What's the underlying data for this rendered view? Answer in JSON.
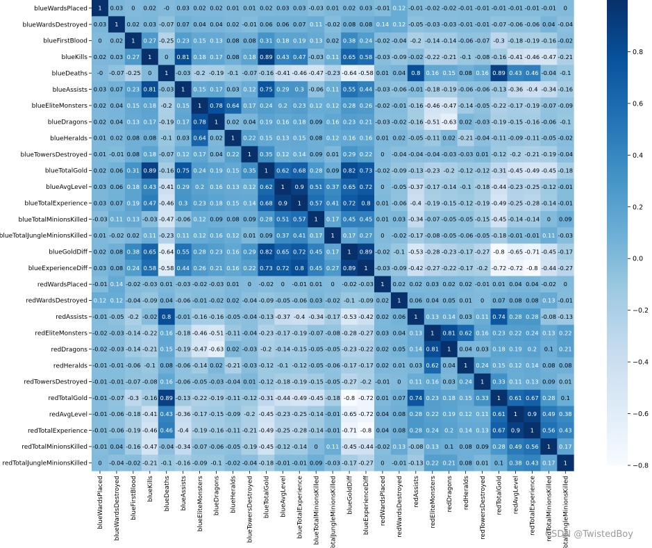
{
  "chart_data": {
    "type": "heatmap",
    "title": "",
    "xlabel": "",
    "ylabel": "",
    "labels": [
      "blueWardsPlaced",
      "blueWardsDestroyed",
      "blueFirstBlood",
      "blueKills",
      "blueDeaths",
      "blueAssists",
      "blueEliteMonsters",
      "blueDragons",
      "blueHeralds",
      "blueTowersDestroyed",
      "blueTotalGold",
      "blueAvgLevel",
      "blueTotalExperience",
      "blueTotalMinionsKilled",
      "blueTotalJungleMinionsKilled",
      "blueGoldDiff",
      "blueExperienceDiff",
      "redWardsPlaced",
      "redWardsDestroyed",
      "redAssists",
      "redEliteMonsters",
      "redDragons",
      "redHeralds",
      "redTowersDestroyed",
      "redTotalGold",
      "redAvgLevel",
      "redTotalExperience",
      "redTotalMinionsKilled",
      "redTotalJungleMinionsKilled"
    ],
    "x_tick_labels": [
      "blueWardsPlaced",
      "blueWardsDestroyed",
      "blueFirstBlood",
      "blueKills",
      "blueDeaths",
      "blueAssists",
      "blueEliteMonsters",
      "blueDragons",
      "blueHeralds",
      "blueTowersDestroyed",
      "blueTotalGold",
      "blueAvgLevel",
      "blueTotalExperience",
      "blueTotalMinionsKilled",
      "eTotalJungleMinionsKilled",
      "blueGoldDiff",
      "blueExperienceDiff",
      "redWardsPlaced",
      "redWardsDestroyed",
      "redAssists",
      "redEliteMonsters",
      "redDragons",
      "redHeralds",
      "redTowersDestroyed",
      "redTotalGold",
      "redAvgLevel",
      "redTotalExperience",
      "redTotalMinionsKilled",
      "dTotalJungleMinionsKilled"
    ],
    "values": [
      [
        "1",
        "0.03",
        "0",
        "0.02",
        "-0",
        "0.03",
        "0.02",
        "0.02",
        "0.01",
        "0.01",
        "0.02",
        "0.03",
        "0.03",
        "-0.03",
        "0.01",
        "0.02",
        "0.03",
        "-0.01",
        "0.12",
        "-0.01",
        "-0.02",
        "-0.02",
        "-0.01",
        "-0.01",
        "-0.01",
        "-0.01",
        "-0.01",
        "-0.01",
        "0"
      ],
      [
        "0.03",
        "1",
        "0.02",
        "0.03",
        "-0.07",
        "0.07",
        "0.04",
        "0.04",
        "0.02",
        "-0.01",
        "0.06",
        "0.06",
        "0.07",
        "0.11",
        "-0.02",
        "0.08",
        "0.08",
        "0.14",
        "0.12",
        "-0.05",
        "-0.03",
        "-0.03",
        "-0.01",
        "-0.01",
        "-0.07",
        "-0.06",
        "-0.06",
        "0.04",
        "-0.04"
      ],
      [
        "0",
        "0.02",
        "1",
        "0.27",
        "-0.25",
        "0.23",
        "0.15",
        "0.13",
        "0.08",
        "0.08",
        "0.31",
        "0.18",
        "0.19",
        "0.13",
        "0.02",
        "0.38",
        "0.24",
        "-0.02",
        "-0.04",
        "-0.2",
        "-0.14",
        "-0.14",
        "-0.06",
        "-0.07",
        "-0.3",
        "-0.18",
        "-0.19",
        "-0.16",
        "-0.02"
      ],
      [
        "0.02",
        "0.03",
        "0.27",
        "1",
        "0",
        "0.81",
        "0.18",
        "0.17",
        "0.08",
        "0.18",
        "0.89",
        "0.43",
        "0.47",
        "-0.03",
        "0.11",
        "0.65",
        "0.58",
        "-0.03",
        "-0.09",
        "-0.02",
        "-0.22",
        "-0.21",
        "-0.1",
        "-0.08",
        "-0.16",
        "-0.41",
        "-0.46",
        "-0.47",
        "-0.21"
      ],
      [
        "-0",
        "-0.07",
        "-0.25",
        "0",
        "1",
        "-0.03",
        "-0.2",
        "-0.19",
        "-0.1",
        "-0.07",
        "-0.16",
        "-0.41",
        "-0.46",
        "-0.47",
        "-0.23",
        "-0.64",
        "-0.58",
        "0.01",
        "0.04",
        "0.8",
        "0.16",
        "0.15",
        "0.08",
        "0.16",
        "0.89",
        "0.43",
        "0.46",
        "-0.04",
        "-0.1"
      ],
      [
        "0.03",
        "0.07",
        "0.23",
        "0.81",
        "-0.03",
        "1",
        "0.15",
        "0.17",
        "0.03",
        "0.12",
        "0.75",
        "0.29",
        "0.3",
        "-0.06",
        "0.11",
        "0.55",
        "0.44",
        "-0.03",
        "-0.06",
        "-0.01",
        "-0.18",
        "-0.19",
        "-0.06",
        "-0.06",
        "-0.13",
        "-0.36",
        "-0.4",
        "-0.34",
        "-0.16"
      ],
      [
        "0.02",
        "0.04",
        "0.15",
        "0.18",
        "-0.2",
        "0.15",
        "1",
        "0.78",
        "0.64",
        "0.17",
        "0.24",
        "0.2",
        "0.23",
        "0.12",
        "0.12",
        "0.28",
        "0.26",
        "-0.02",
        "-0.01",
        "-0.16",
        "-0.46",
        "-0.47",
        "-0.14",
        "-0.05",
        "-0.22",
        "-0.17",
        "-0.19",
        "-0.07",
        "-0.09"
      ],
      [
        "0.02",
        "0.04",
        "0.13",
        "0.17",
        "-0.19",
        "0.17",
        "0.78",
        "1",
        "0.02",
        "0.04",
        "0.19",
        "0.16",
        "0.18",
        "0.09",
        "0.16",
        "0.23",
        "0.21",
        "-0.03",
        "-0.02",
        "-0.16",
        "-0.51",
        "-0.63",
        "0.02",
        "-0.03",
        "-0.19",
        "-0.15",
        "-0.16",
        "-0.06",
        "-0.1"
      ],
      [
        "0.01",
        "0.02",
        "0.08",
        "0.08",
        "-0.1",
        "0.03",
        "0.64",
        "0.02",
        "1",
        "0.22",
        "0.15",
        "0.13",
        "0.15",
        "0.08",
        "0.12",
        "0.16",
        "0.16",
        "0.01",
        "0.02",
        "-0.05",
        "-0.11",
        "0.02",
        "-0.21",
        "-0.04",
        "-0.11",
        "-0.09",
        "-0.11",
        "-0.05",
        "-0.02"
      ],
      [
        "0.01",
        "-0.01",
        "0.08",
        "0.18",
        "-0.07",
        "0.12",
        "0.17",
        "0.04",
        "0.22",
        "1",
        "0.35",
        "0.12",
        "0.14",
        "0.09",
        "0.01",
        "0.29",
        "0.22",
        "0",
        "-0.04",
        "-0.04",
        "-0.04",
        "-0.03",
        "-0.03",
        "0.01",
        "-0.12",
        "-0.2",
        "-0.21",
        "-0.19",
        "-0.04"
      ],
      [
        "0.02",
        "0.06",
        "0.31",
        "0.89",
        "-0.16",
        "0.75",
        "0.24",
        "0.19",
        "0.15",
        "0.35",
        "1",
        "0.62",
        "0.68",
        "0.28",
        "0.09",
        "0.82",
        "0.73",
        "-0.02",
        "-0.09",
        "-0.13",
        "-0.23",
        "-0.2",
        "-0.12",
        "-0.12",
        "-0.31",
        "-0.45",
        "-0.49",
        "-0.45",
        "-0.18"
      ],
      [
        "0.03",
        "0.06",
        "0.18",
        "0.43",
        "-0.41",
        "0.29",
        "0.2",
        "0.16",
        "0.13",
        "0.12",
        "0.62",
        "1",
        "0.9",
        "0.51",
        "0.37",
        "0.65",
        "0.72",
        "0",
        "-0.05",
        "-0.37",
        "-0.17",
        "-0.14",
        "-0.1",
        "-0.18",
        "-0.44",
        "-0.23",
        "-0.25",
        "-0.12",
        "-0.01"
      ],
      [
        "0.03",
        "0.07",
        "0.19",
        "0.47",
        "-0.46",
        "0.3",
        "0.23",
        "0.18",
        "0.15",
        "0.14",
        "0.68",
        "0.9",
        "1",
        "0.57",
        "0.41",
        "0.72",
        "0.8",
        "0.01",
        "-0.06",
        "-0.4",
        "-0.19",
        "-0.15",
        "-0.12",
        "-0.19",
        "-0.49",
        "-0.25",
        "-0.28",
        "-0.14",
        "-0.01"
      ],
      [
        "-0.03",
        "0.11",
        "0.13",
        "-0.03",
        "-0.47",
        "-0.06",
        "0.12",
        "0.09",
        "0.08",
        "0.09",
        "0.28",
        "0.51",
        "0.57",
        "1",
        "0.17",
        "0.45",
        "0.45",
        "0.01",
        "0.03",
        "-0.34",
        "-0.07",
        "-0.05",
        "-0.05",
        "-0.15",
        "-0.45",
        "-0.14",
        "-0.14",
        "0",
        "0.09"
      ],
      [
        "0.01",
        "-0.02",
        "0.02",
        "0.11",
        "-0.23",
        "0.11",
        "0.12",
        "0.16",
        "0.12",
        "0.01",
        "0.09",
        "0.37",
        "0.41",
        "0.17",
        "1",
        "0.17",
        "0.27",
        "0",
        "-0.02",
        "-0.17",
        "-0.08",
        "-0.05",
        "-0.06",
        "-0.05",
        "-0.18",
        "-0.01",
        "-0.01",
        "0.11",
        "-0.03"
      ],
      [
        "0.02",
        "0.08",
        "0.38",
        "0.65",
        "-0.64",
        "0.55",
        "0.28",
        "0.23",
        "0.16",
        "0.29",
        "0.82",
        "0.65",
        "0.72",
        "0.45",
        "0.17",
        "1",
        "0.89",
        "-0.02",
        "-0.1",
        "-0.53",
        "-0.28",
        "-0.23",
        "-0.17",
        "-0.27",
        "-0.8",
        "-0.65",
        "-0.71",
        "-0.45",
        "-0.17"
      ],
      [
        "0.03",
        "0.08",
        "0.24",
        "0.58",
        "-0.58",
        "0.44",
        "0.26",
        "0.21",
        "0.16",
        "0.22",
        "0.73",
        "0.72",
        "0.8",
        "0.45",
        "0.27",
        "0.89",
        "1",
        "-0.03",
        "-0.09",
        "-0.42",
        "-0.27",
        "-0.22",
        "-0.17",
        "-0.2",
        "-0.72",
        "-0.72",
        "-0.8",
        "-0.44",
        "-0.27"
      ],
      [
        "-0.01",
        "0.14",
        "-0.02",
        "-0.03",
        "0.01",
        "-0.03",
        "-0.02",
        "-0.03",
        "0.01",
        "0",
        "-0.02",
        "0",
        "-0.01",
        "0.01",
        "0",
        "-0.02",
        "-0.03",
        "1",
        "0.02",
        "0.02",
        "0.03",
        "0.02",
        "0.02",
        "-0.01",
        "0.01",
        "0.04",
        "0.04",
        "-0.02",
        "0"
      ],
      [
        "0.12",
        "0.12",
        "-0.04",
        "-0.09",
        "0.04",
        "-0.06",
        "-0.01",
        "-0.02",
        "0.02",
        "-0.04",
        "-0.09",
        "-0.05",
        "-0.06",
        "0.03",
        "-0.02",
        "-0.1",
        "-0.09",
        "0.02",
        "1",
        "0.06",
        "0.04",
        "0.05",
        "0.01",
        "0",
        "0.07",
        "0.08",
        "0.08",
        "0.13",
        "-0.01"
      ],
      [
        "-0.01",
        "-0.05",
        "-0.2",
        "-0.02",
        "0.8",
        "-0.01",
        "-0.16",
        "-0.16",
        "-0.05",
        "-0.04",
        "-0.13",
        "-0.37",
        "-0.4",
        "-0.34",
        "-0.17",
        "-0.53",
        "-0.42",
        "0.02",
        "0.06",
        "1",
        "0.13",
        "0.14",
        "0.03",
        "0.11",
        "0.74",
        "0.28",
        "0.28",
        "-0.08",
        "-0.13"
      ],
      [
        "-0.02",
        "-0.03",
        "-0.14",
        "-0.22",
        "0.16",
        "-0.18",
        "-0.46",
        "-0.51",
        "-0.11",
        "-0.04",
        "-0.23",
        "-0.17",
        "-0.19",
        "-0.07",
        "-0.08",
        "-0.28",
        "-0.27",
        "0.03",
        "0.04",
        "0.13",
        "1",
        "0.81",
        "0.62",
        "0.16",
        "0.23",
        "0.22",
        "0.24",
        "0.13",
        "0.22"
      ],
      [
        "-0.02",
        "-0.03",
        "-0.14",
        "-0.21",
        "0.15",
        "-0.19",
        "-0.47",
        "-0.63",
        "0.02",
        "-0.03",
        "-0.2",
        "-0.14",
        "-0.15",
        "-0.05",
        "-0.05",
        "-0.23",
        "-0.22",
        "0.02",
        "0.05",
        "0.14",
        "0.81",
        "1",
        "0.04",
        "0.03",
        "0.18",
        "0.19",
        "0.2",
        "0.1",
        "0.21"
      ],
      [
        "-0.01",
        "-0.01",
        "-0.06",
        "-0.1",
        "0.08",
        "-0.06",
        "-0.14",
        "0.02",
        "-0.21",
        "-0.03",
        "-0.12",
        "-0.1",
        "-0.12",
        "-0.05",
        "-0.06",
        "-0.17",
        "-0.17",
        "0.02",
        "0.01",
        "0.03",
        "0.62",
        "0.04",
        "1",
        "0.24",
        "0.15",
        "0.12",
        "0.14",
        "0.08",
        "0.08"
      ],
      [
        "-0.01",
        "-0.01",
        "-0.07",
        "-0.08",
        "0.16",
        "-0.06",
        "-0.05",
        "-0.03",
        "-0.04",
        "0.01",
        "-0.12",
        "-0.18",
        "-0.19",
        "-0.15",
        "-0.05",
        "-0.27",
        "-0.2",
        "-0.01",
        "0",
        "0.11",
        "0.16",
        "0.03",
        "0.24",
        "1",
        "0.33",
        "0.11",
        "0.13",
        "0.09",
        "0.01"
      ],
      [
        "-0.01",
        "-0.07",
        "-0.3",
        "-0.16",
        "0.89",
        "-0.13",
        "-0.22",
        "-0.19",
        "-0.11",
        "-0.12",
        "-0.31",
        "-0.44",
        "-0.49",
        "-0.45",
        "-0.18",
        "-0.8",
        "-0.72",
        "0.01",
        "0.07",
        "0.74",
        "0.23",
        "0.18",
        "0.15",
        "0.33",
        "1",
        "0.61",
        "0.67",
        "0.28",
        "0.1"
      ],
      [
        "-0.01",
        "-0.06",
        "-0.18",
        "-0.41",
        "0.43",
        "-0.36",
        "-0.17",
        "-0.15",
        "-0.09",
        "-0.2",
        "-0.45",
        "-0.23",
        "-0.25",
        "-0.14",
        "-0.01",
        "-0.65",
        "-0.72",
        "0.04",
        "0.08",
        "0.28",
        "0.22",
        "0.19",
        "0.12",
        "0.11",
        "0.61",
        "1",
        "0.9",
        "0.49",
        "0.38"
      ],
      [
        "-0.01",
        "-0.06",
        "-0.19",
        "-0.46",
        "0.46",
        "-0.4",
        "-0.19",
        "-0.16",
        "-0.11",
        "-0.21",
        "-0.49",
        "-0.25",
        "-0.28",
        "-0.14",
        "-0.01",
        "-0.71",
        "-0.8",
        "0.04",
        "0.08",
        "0.28",
        "0.24",
        "0.2",
        "0.14",
        "0.13",
        "0.67",
        "0.9",
        "1",
        "0.56",
        "0.43"
      ],
      [
        "-0.01",
        "0.04",
        "-0.16",
        "-0.47",
        "-0.04",
        "-0.34",
        "-0.07",
        "-0.06",
        "-0.05",
        "-0.19",
        "-0.45",
        "-0.12",
        "-0.14",
        "0",
        "0.11",
        "-0.45",
        "-0.44",
        "-0.02",
        "0.13",
        "-0.08",
        "0.13",
        "0.1",
        "0.08",
        "0.09",
        "0.28",
        "0.49",
        "0.56",
        "1",
        "0.17"
      ],
      [
        "0",
        "-0.04",
        "-0.02",
        "-0.21",
        "-0.1",
        "-0.16",
        "-0.09",
        "-0.1",
        "-0.02",
        "-0.04",
        "-0.18",
        "-0.01",
        "-0.01",
        "0.09",
        "-0.03",
        "-0.17",
        "-0.27",
        "0",
        "-0.01",
        "-0.13",
        "0.22",
        "0.21",
        "0.08",
        "0.01",
        "0.1",
        "0.38",
        "0.43",
        "0.17",
        "1"
      ]
    ],
    "colorbar": {
      "range": [
        -0.8,
        1.0
      ],
      "ticks": [
        "0.8",
        "0.6",
        "0.4",
        "0.2",
        "0.0",
        "−0.2",
        "−0.4",
        "−0.6",
        "−0.8"
      ],
      "tick_values": [
        0.8,
        0.6,
        0.4,
        0.2,
        0.0,
        -0.2,
        -0.4,
        -0.6,
        -0.8
      ]
    },
    "colormap": "Blues",
    "colors": {
      "low": "#f7fbff",
      "high": "#08306b",
      "text_dark": "#000000",
      "text_light": "#ffffff"
    }
  },
  "watermark": "CSDN @TwistedBoy"
}
